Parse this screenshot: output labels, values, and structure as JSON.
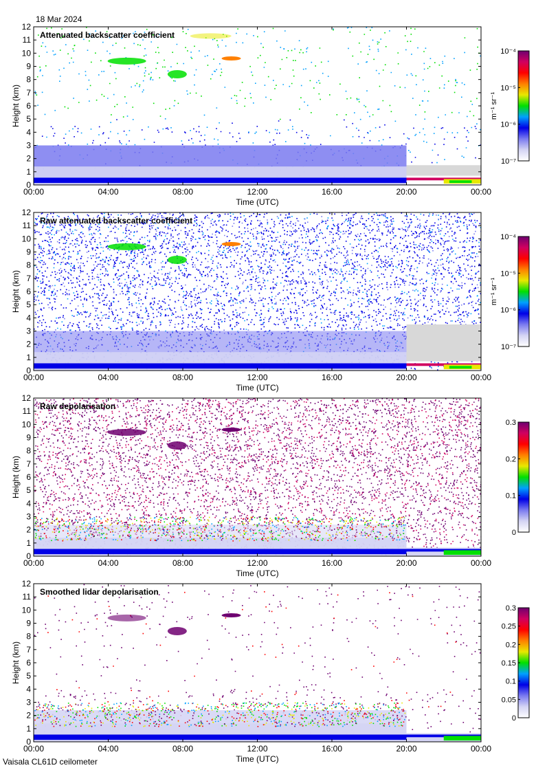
{
  "date_label": "18 Mar 2024",
  "instrument_label": "Vaisala CL61D ceilometer",
  "colors": {
    "cmap": [
      "#ffffff",
      "#d4d4f4",
      "#7a7af0",
      "#0000e6",
      "#00a0ff",
      "#00e000",
      "#e8e800",
      "#ff8000",
      "#ff0000",
      "#d00060",
      "#6e0070"
    ],
    "missing_grey": "#d8d8d8",
    "axes": "#000000"
  },
  "chart_data": [
    {
      "type": "heatmap",
      "title": "Attenuated backscatter coefficient",
      "xlabel": "Time (UTC)",
      "ylabel": "Height (km)",
      "x_ticks": [
        "00:00",
        "04:00",
        "08:00",
        "12:00",
        "16:00",
        "20:00",
        "00:00"
      ],
      "xlim_hours": [
        0,
        24
      ],
      "ylim": [
        0,
        12
      ],
      "y_ticks": [
        0,
        1,
        2,
        3,
        4,
        5,
        6,
        7,
        8,
        9,
        10,
        11,
        12
      ],
      "colorbar": {
        "scale": "log",
        "range": [
          1e-07,
          0.0001
        ],
        "unit_label": "m⁻¹ sr⁻¹",
        "ticks": [
          {
            "value": 1e-07,
            "label": "10⁻⁷"
          },
          {
            "value": 1e-06,
            "label": "10⁻⁶"
          },
          {
            "value": 1e-05,
            "label": "10⁻⁵"
          },
          {
            "value": 0.0001,
            "label": "10⁻⁴"
          }
        ]
      },
      "grid": false
    },
    {
      "type": "heatmap",
      "title": "Raw attenuated backscatter coefficient",
      "xlabel": "Time (UTC)",
      "ylabel": "Height (km)",
      "x_ticks": [
        "00:00",
        "04:00",
        "08:00",
        "12:00",
        "16:00",
        "20:00",
        "00:00"
      ],
      "xlim_hours": [
        0,
        24
      ],
      "ylim": [
        0,
        12
      ],
      "y_ticks": [
        0,
        1,
        2,
        3,
        4,
        5,
        6,
        7,
        8,
        9,
        10,
        11,
        12
      ],
      "colorbar": {
        "scale": "log",
        "range": [
          1e-07,
          0.0001
        ],
        "unit_label": "m⁻¹ sr⁻¹",
        "ticks": [
          {
            "value": 1e-07,
            "label": "10⁻⁷"
          },
          {
            "value": 1e-06,
            "label": "10⁻⁶"
          },
          {
            "value": 1e-05,
            "label": "10⁻⁵"
          },
          {
            "value": 0.0001,
            "label": "10⁻⁴"
          }
        ]
      },
      "grid": false
    },
    {
      "type": "heatmap",
      "title": "Raw depolarisation",
      "xlabel": "Time (UTC)",
      "ylabel": "Height (km)",
      "x_ticks": [
        "00:00",
        "04:00",
        "08:00",
        "12:00",
        "16:00",
        "20:00",
        "00:00"
      ],
      "xlim_hours": [
        0,
        24
      ],
      "ylim": [
        0,
        12
      ],
      "y_ticks": [
        0,
        1,
        2,
        3,
        4,
        5,
        6,
        7,
        8,
        9,
        10,
        11,
        12
      ],
      "colorbar": {
        "scale": "linear",
        "range": [
          0,
          0.3
        ],
        "unit_label": "",
        "ticks": [
          {
            "value": 0,
            "label": "0"
          },
          {
            "value": 0.1,
            "label": "0.1"
          },
          {
            "value": 0.2,
            "label": "0.2"
          },
          {
            "value": 0.3,
            "label": "0.3"
          }
        ]
      },
      "grid": false
    },
    {
      "type": "heatmap",
      "title": "Smoothed lidar depolarisation",
      "xlabel": "Time (UTC)",
      "ylabel": "Height (km)",
      "x_ticks": [
        "00:00",
        "04:00",
        "08:00",
        "12:00",
        "16:00",
        "20:00",
        "00:00"
      ],
      "xlim_hours": [
        0,
        24
      ],
      "ylim": [
        0,
        12
      ],
      "y_ticks": [
        0,
        1,
        2,
        3,
        4,
        5,
        6,
        7,
        8,
        9,
        10,
        11,
        12
      ],
      "colorbar": {
        "scale": "linear",
        "range": [
          0,
          0.3
        ],
        "unit_label": "",
        "ticks": [
          {
            "value": 0,
            "label": "0"
          },
          {
            "value": 0.05,
            "label": "0.05"
          },
          {
            "value": 0.1,
            "label": "0.1"
          },
          {
            "value": 0.15,
            "label": "0.15"
          },
          {
            "value": 0.2,
            "label": "0.2"
          },
          {
            "value": 0.25,
            "label": "0.25"
          },
          {
            "value": 0.3,
            "label": "0.3"
          }
        ]
      },
      "grid": false
    }
  ]
}
